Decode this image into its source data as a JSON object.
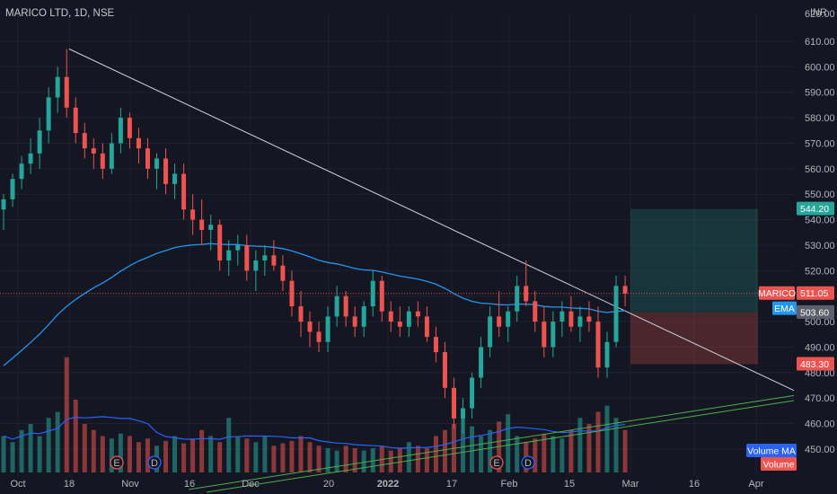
{
  "header": {
    "symbol_title": "MARICO LTD, 1D, NSE",
    "currency": "INR"
  },
  "colors": {
    "bg": "#141721",
    "grid": "#1e2230",
    "up": "#26a69a",
    "down": "#ef5350",
    "ema": "#2196f3",
    "vol_ma": "#2962ff",
    "trend": "#d1d4dc",
    "green_trend": "#4caf50"
  },
  "labels": {
    "ema": "EMA",
    "price_tag_name": "MARICO",
    "volume_ma": "Volume MA",
    "volume": "Volume"
  },
  "chart_data": {
    "type": "candlestick",
    "y_axis": {
      "min": 440,
      "max": 620,
      "ticks": [
        450,
        460,
        470,
        480,
        490,
        500,
        510,
        520,
        530,
        540,
        550,
        560,
        570,
        580,
        590,
        600,
        610
      ],
      "top_tick_partial": "620.00"
    },
    "x_axis_labels": [
      "Oct",
      "18",
      "Nov",
      "16",
      "Dec",
      "20",
      "2022",
      "17",
      "Feb",
      "15",
      "Mar",
      "16",
      "Apr"
    ],
    "last_price": 511.05,
    "ema_value": 503.6,
    "target_price": 544.2,
    "stop_price": 483.3,
    "event_markers": [
      "E",
      "D",
      "E",
      "D"
    ],
    "ohlc": [
      [
        544,
        550,
        536,
        548
      ],
      [
        548,
        558,
        545,
        556
      ],
      [
        556,
        565,
        552,
        562
      ],
      [
        562,
        572,
        558,
        566
      ],
      [
        566,
        580,
        560,
        575
      ],
      [
        575,
        592,
        570,
        588
      ],
      [
        588,
        600,
        582,
        596
      ],
      [
        596,
        607,
        580,
        584
      ],
      [
        584,
        588,
        570,
        574
      ],
      [
        574,
        578,
        564,
        568
      ],
      [
        568,
        572,
        560,
        566
      ],
      [
        566,
        570,
        556,
        560
      ],
      [
        560,
        574,
        558,
        570
      ],
      [
        570,
        584,
        566,
        580
      ],
      [
        580,
        582,
        568,
        572
      ],
      [
        572,
        576,
        562,
        568
      ],
      [
        568,
        572,
        556,
        560
      ],
      [
        560,
        566,
        552,
        564
      ],
      [
        564,
        568,
        550,
        554
      ],
      [
        554,
        562,
        548,
        558
      ],
      [
        558,
        562,
        540,
        544
      ],
      [
        544,
        550,
        534,
        540
      ],
      [
        540,
        548,
        530,
        536
      ],
      [
        536,
        542,
        528,
        538
      ],
      [
        538,
        540,
        520,
        524
      ],
      [
        524,
        532,
        518,
        528
      ],
      [
        528,
        534,
        522,
        530
      ],
      [
        530,
        534,
        516,
        520
      ],
      [
        520,
        528,
        512,
        524
      ],
      [
        524,
        530,
        518,
        526
      ],
      [
        526,
        532,
        520,
        522
      ],
      [
        522,
        526,
        512,
        516
      ],
      [
        516,
        520,
        502,
        506
      ],
      [
        506,
        512,
        494,
        500
      ],
      [
        500,
        504,
        490,
        496
      ],
      [
        496,
        500,
        488,
        492
      ],
      [
        492,
        506,
        488,
        502
      ],
      [
        502,
        514,
        498,
        510
      ],
      [
        510,
        512,
        498,
        502
      ],
      [
        502,
        506,
        494,
        498
      ],
      [
        498,
        508,
        494,
        506
      ],
      [
        506,
        520,
        502,
        516
      ],
      [
        516,
        518,
        500,
        504
      ],
      [
        504,
        508,
        496,
        500
      ],
      [
        500,
        506,
        494,
        498
      ],
      [
        498,
        506,
        494,
        504
      ],
      [
        504,
        508,
        498,
        502
      ],
      [
        502,
        506,
        492,
        494
      ],
      [
        494,
        498,
        484,
        488
      ],
      [
        488,
        492,
        470,
        474
      ],
      [
        474,
        478,
        458,
        462
      ],
      [
        462,
        470,
        456,
        466
      ],
      [
        466,
        480,
        462,
        478
      ],
      [
        478,
        494,
        474,
        490
      ],
      [
        490,
        506,
        486,
        502
      ],
      [
        502,
        512,
        494,
        498
      ],
      [
        498,
        506,
        492,
        504
      ],
      [
        504,
        518,
        500,
        514
      ],
      [
        514,
        524,
        506,
        508
      ],
      [
        508,
        512,
        496,
        500
      ],
      [
        500,
        506,
        486,
        490
      ],
      [
        490,
        504,
        486,
        500
      ],
      [
        500,
        508,
        494,
        504
      ],
      [
        504,
        510,
        496,
        498
      ],
      [
        498,
        506,
        492,
        502
      ],
      [
        502,
        508,
        496,
        500
      ],
      [
        500,
        506,
        478,
        482
      ],
      [
        482,
        496,
        478,
        492
      ],
      [
        492,
        518,
        490,
        514
      ],
      [
        514,
        518,
        506,
        511
      ]
    ],
    "volume_relative": [
      0.3,
      0.25,
      0.35,
      0.4,
      0.3,
      0.45,
      0.5,
      0.95,
      0.6,
      0.4,
      0.35,
      0.3,
      0.28,
      0.32,
      0.3,
      0.25,
      0.28,
      0.22,
      0.26,
      0.3,
      0.24,
      0.28,
      0.35,
      0.3,
      0.25,
      0.45,
      0.3,
      0.28,
      0.25,
      0.3,
      0.22,
      0.24,
      0.26,
      0.3,
      0.25,
      0.22,
      0.2,
      0.18,
      0.22,
      0.2,
      0.18,
      0.2,
      0.22,
      0.18,
      0.2,
      0.25,
      0.22,
      0.2,
      0.3,
      0.35,
      0.4,
      0.45,
      0.38,
      0.3,
      0.35,
      0.42,
      0.48,
      0.3,
      0.25,
      0.28,
      0.32,
      0.3,
      0.28,
      0.35,
      0.45,
      0.4,
      0.5,
      0.55,
      0.45,
      0.35
    ]
  }
}
